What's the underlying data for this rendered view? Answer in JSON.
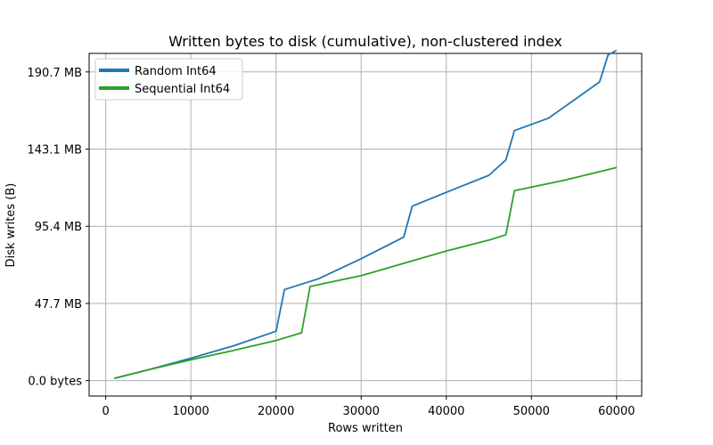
{
  "chart_data": {
    "type": "line",
    "title": "Written bytes to disk (cumulative), non-clustered index",
    "xlabel": "Rows written",
    "ylabel": "Disk writes (B)",
    "xlim": [
      -1950,
      62950
    ],
    "ylim": [
      -10000000,
      212000000
    ],
    "x_ticks": [
      {
        "value": 0,
        "label": "0"
      },
      {
        "value": 10000,
        "label": "10000"
      },
      {
        "value": 20000,
        "label": "20000"
      },
      {
        "value": 30000,
        "label": "30000"
      },
      {
        "value": 40000,
        "label": "40000"
      },
      {
        "value": 50000,
        "label": "50000"
      },
      {
        "value": 60000,
        "label": "60000"
      }
    ],
    "y_ticks": [
      {
        "value": 0,
        "label": "0.0 bytes"
      },
      {
        "value": 50000000,
        "label": "47.7 MB"
      },
      {
        "value": 100000000,
        "label": "95.4 MB"
      },
      {
        "value": 150000000,
        "label": "143.1 MB"
      },
      {
        "value": 200000000,
        "label": "190.7 MB"
      }
    ],
    "grid": true,
    "legend_position": "top-left",
    "series": [
      {
        "name": "Random Int64",
        "color": "#1f77b4",
        "x": [
          1000,
          5000,
          10000,
          15000,
          20000,
          21000,
          25000,
          30000,
          35000,
          36000,
          40000,
          45000,
          47000,
          48000,
          52000,
          58000,
          59000,
          60000
        ],
        "y": [
          1500000,
          7000000,
          14500000,
          22500000,
          32000000,
          59000000,
          66000000,
          79000000,
          93000000,
          113000000,
          122000000,
          133000000,
          143000000,
          162000000,
          170000000,
          193500000,
          211000000,
          214000000
        ]
      },
      {
        "name": "Sequential Int64",
        "color": "#2ca02c",
        "x": [
          1000,
          5000,
          10000,
          15000,
          20000,
          23000,
          24000,
          30000,
          35000,
          40000,
          45000,
          47000,
          48000,
          54000,
          60000
        ],
        "y": [
          1500000,
          7000000,
          13500000,
          19500000,
          26000000,
          31000000,
          61000000,
          68000000,
          76000000,
          84000000,
          91000000,
          94500000,
          123000000,
          130000000,
          138000000
        ]
      }
    ]
  }
}
